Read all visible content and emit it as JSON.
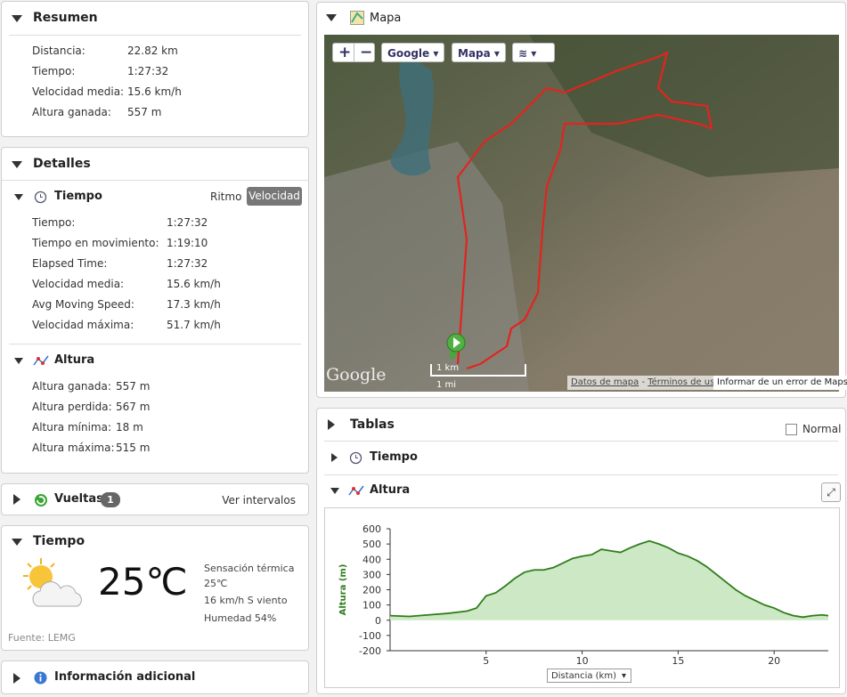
{
  "resumen": {
    "title": "Resumen",
    "rows": [
      [
        "Distancia:",
        "22.82 km"
      ],
      [
        "Tiempo:",
        "1:27:32"
      ],
      [
        "Velocidad media:",
        "15.6 km/h"
      ],
      [
        "Altura ganada:",
        "557 m"
      ]
    ]
  },
  "detalles": {
    "title": "Detalles",
    "tiempo": {
      "title": "Tiempo",
      "tabs": [
        "Ritmo",
        "Velocidad"
      ],
      "rows": [
        [
          "Tiempo:",
          "1:27:32"
        ],
        [
          "Tiempo en movimiento:",
          "1:19:10"
        ],
        [
          "Elapsed Time:",
          "1:27:32"
        ],
        [
          "Velocidad media:",
          "15.6 km/h"
        ],
        [
          "Avg Moving Speed:",
          "17.3 km/h"
        ],
        [
          "Velocidad máxima:",
          "51.7 km/h"
        ]
      ]
    },
    "altura": {
      "title": "Altura",
      "rows": [
        [
          "Altura ganada:",
          "557 m"
        ],
        [
          "Altura perdida:",
          "567 m"
        ],
        [
          "Altura mínima:",
          "18 m"
        ],
        [
          "Altura máxima:",
          "515 m"
        ]
      ]
    }
  },
  "vueltas": {
    "title": "Vueltas",
    "count": 1,
    "link": "Ver intervalos"
  },
  "clima": {
    "title": "Tiempo",
    "temp": "25℃",
    "lines": [
      "Sensación térmica",
      "25℃",
      "16 km/h S viento",
      "Humedad 54%"
    ],
    "source": "Fuente: LEMG"
  },
  "info": {
    "title": "Información adicional"
  },
  "mapa": {
    "title": "Mapa",
    "controls": [
      "Google",
      "Mapa"
    ],
    "logo": "Google",
    "scale": [
      "1 km",
      "1 mi"
    ],
    "footer": [
      "Datos de mapa",
      "Términos de uso",
      "Informar de un error de Maps"
    ]
  },
  "tablas": {
    "title": "Tablas",
    "checkbox": "Normal",
    "tiempo": "Tiempo",
    "altura": "Altura",
    "chart": {
      "type": "area",
      "y_label": "Altura (m)",
      "x_label": "Distancia (km)",
      "color": "#2f7d1c",
      "fill": "#cde8c4",
      "x": [
        0,
        1,
        2,
        3,
        4,
        4.5,
        5,
        5.5,
        6,
        6.5,
        7,
        7.5,
        8,
        8.5,
        9,
        9.5,
        10,
        10.5,
        11,
        11.5,
        12,
        12.5,
        13,
        13.5,
        14,
        14.5,
        15,
        15.5,
        16,
        16.5,
        17,
        17.5,
        18,
        18.5,
        19,
        19.5,
        20,
        20.5,
        21,
        21.5,
        22,
        22.5,
        22.82
      ],
      "values": [
        30,
        25,
        35,
        45,
        60,
        80,
        160,
        180,
        225,
        275,
        315,
        330,
        330,
        345,
        375,
        405,
        420,
        430,
        465,
        455,
        445,
        475,
        500,
        520,
        500,
        475,
        440,
        420,
        390,
        350,
        300,
        250,
        200,
        160,
        130,
        100,
        80,
        50,
        30,
        20,
        30,
        35,
        30
      ],
      "xlim": [
        0,
        22.82
      ],
      "ylim": [
        -200,
        600
      ],
      "xticks": [
        5,
        10,
        15,
        20
      ],
      "yticks": [
        -200,
        -100,
        0,
        100,
        200,
        300,
        400,
        500,
        600
      ],
      "grid": false
    }
  }
}
